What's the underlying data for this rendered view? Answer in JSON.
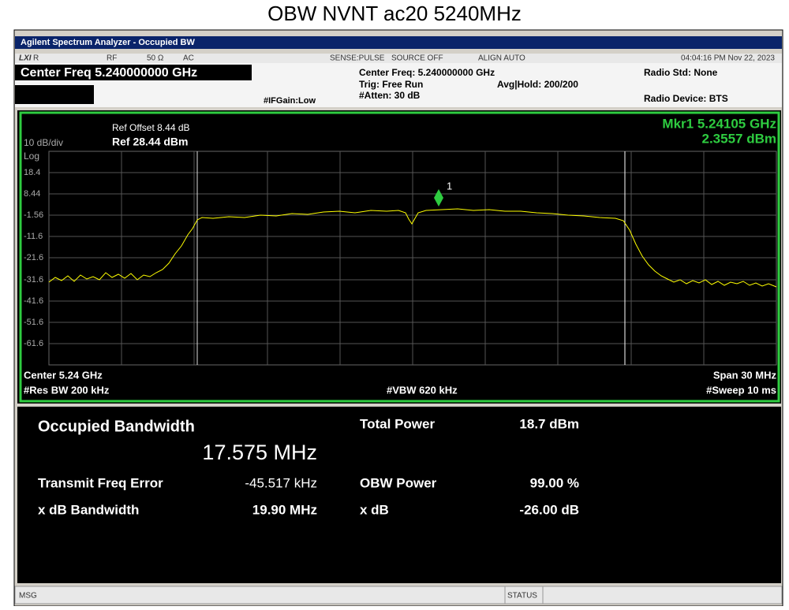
{
  "title": "OBW NVNT ac20 5240MHz",
  "window_title": "Agilent Spectrum Analyzer - Occupied BW",
  "status_bar": {
    "lxi": "LXI",
    "r": "R",
    "rf": "RF",
    "impedance": "50 Ω",
    "coupling": "AC",
    "sense": "SENSE:PULSE",
    "source": "SOURCE OFF",
    "align": "ALIGN AUTO",
    "datetime": "04:04:16 PM Nov 22, 2023"
  },
  "header": {
    "center_freq": "Center Freq 5.240000000 GHz",
    "if_gain": "#IFGain:Low",
    "center_freq_small": "Center Freq: 5.240000000 GHz",
    "trig": "Trig: Free Run",
    "atten": "#Atten: 30 dB",
    "avg_hold": "Avg|Hold: 200/200",
    "radio_std": "Radio Std: None",
    "radio_device": "Radio Device: BTS"
  },
  "graph": {
    "ref_offset": "Ref Offset 8.44 dB",
    "scale": "10 dB/div",
    "ref_level": "Ref 28.44 dBm",
    "log": "Log",
    "marker_label": "Mkr1  5.24105 GHz",
    "marker_value": "2.3557 dBm",
    "marker_id": "1",
    "y_labels": [
      "18.4",
      "8.44",
      "-1.56",
      "-11.6",
      "-21.6",
      "-31.6",
      "-41.6",
      "-51.6",
      "-61.6"
    ],
    "center": "Center  5.24 GHz",
    "span": "Span 30 MHz",
    "res_bw": "#Res BW  200 kHz",
    "vbw": "#VBW  620 kHz",
    "sweep": "#Sweep  10 ms"
  },
  "results": {
    "occupied_bandwidth_label": "Occupied Bandwidth",
    "occupied_bandwidth": "17.575 MHz",
    "total_power_label": "Total Power",
    "total_power": "18.7 dBm",
    "freq_error_label": "Transmit Freq Error",
    "freq_error": "-45.517 kHz",
    "obw_power_label": "OBW Power",
    "obw_power": "99.00 %",
    "xdb_bandwidth_label": "x dB Bandwidth",
    "xdb_bandwidth": "19.90 MHz",
    "xdb_label": "x dB",
    "xdb": "-26.00 dB"
  },
  "footer": {
    "msg": "MSG",
    "status": "STATUS"
  }
}
